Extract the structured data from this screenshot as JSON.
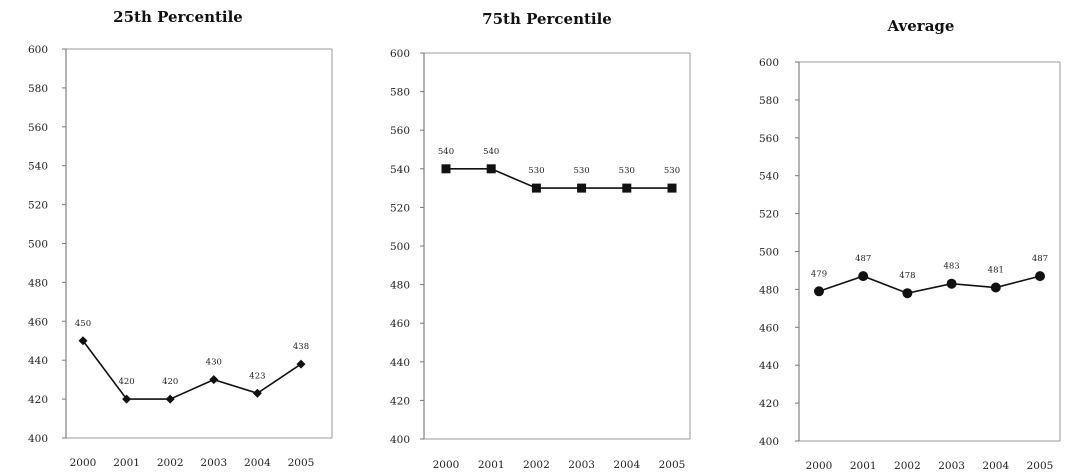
{
  "chart_data": [
    {
      "type": "line",
      "title": "25th Percentile",
      "categories": [
        "2000",
        "2001",
        "2002",
        "2003",
        "2004",
        "2005"
      ],
      "values": [
        450,
        420,
        420,
        430,
        423,
        438
      ],
      "data_labels": [
        "450",
        "420",
        "420",
        "430",
        "423",
        "438"
      ],
      "ylim": [
        400,
        600
      ],
      "yticks": [
        "400",
        "420",
        "440",
        "460",
        "480",
        "500",
        "520",
        "540",
        "560",
        "580",
        "600"
      ],
      "marker": "diamond",
      "grid": false
    },
    {
      "type": "line",
      "title": "75th Percentile",
      "categories": [
        "2000",
        "2001",
        "2002",
        "2003",
        "2004",
        "2005"
      ],
      "values": [
        540,
        540,
        530,
        530,
        530,
        530
      ],
      "data_labels": [
        "540",
        "540",
        "530",
        "530",
        "530",
        "530"
      ],
      "ylim": [
        400,
        600
      ],
      "yticks": [
        "400",
        "420",
        "440",
        "460",
        "480",
        "500",
        "520",
        "540",
        "560",
        "580",
        "600"
      ],
      "marker": "square",
      "grid": false
    },
    {
      "type": "line",
      "title": "Average",
      "categories": [
        "2000",
        "2001",
        "2002",
        "2003",
        "2004",
        "2005"
      ],
      "values": [
        479,
        487,
        478,
        483,
        481,
        487
      ],
      "data_labels": [
        "479",
        "487",
        "478",
        "483",
        "481",
        "487"
      ],
      "ylim": [
        400,
        600
      ],
      "yticks": [
        "400",
        "420",
        "440",
        "460",
        "480",
        "500",
        "520",
        "540",
        "560",
        "580",
        "600"
      ],
      "marker": "circle",
      "grid": false
    }
  ]
}
